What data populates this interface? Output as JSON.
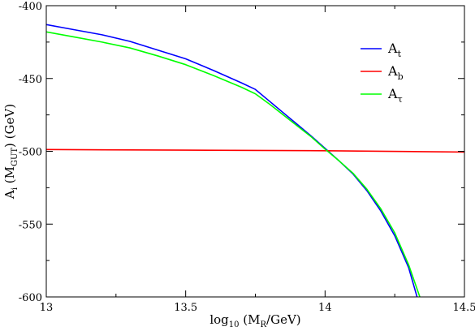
{
  "chart_data": {
    "type": "line",
    "xlabel": {
      "base": "log",
      "sub1": "10",
      "mid": " (M",
      "sub2": "R",
      "tail": "/GeV)"
    },
    "ylabel": {
      "base": "A",
      "sub1": "i",
      "mid": " (M",
      "sub2": "GUT",
      "tail": ")  (GeV)"
    },
    "xlim": [
      13,
      14.5
    ],
    "ylim": [
      -600,
      -400
    ],
    "x_ticks": [
      13,
      13.5,
      14,
      14.5
    ],
    "x_tick_labels": [
      "13",
      "13.5",
      "14",
      "14.5"
    ],
    "y_ticks": [
      -400,
      -450,
      -500,
      -550,
      -600
    ],
    "y_tick_labels": [
      "-400",
      "-450",
      "-500",
      "-550",
      "-600"
    ],
    "grid": false,
    "legend_position": "top-right",
    "series": [
      {
        "name": "A",
        "name_sub": "t",
        "color": "#0000ff",
        "points": [
          [
            13.0,
            -413.0
          ],
          [
            13.1,
            -416.5
          ],
          [
            13.2,
            -420.0
          ],
          [
            13.3,
            -424.5
          ],
          [
            13.4,
            -430.5
          ],
          [
            13.5,
            -436.5
          ],
          [
            13.6,
            -444.5
          ],
          [
            13.7,
            -453.0
          ],
          [
            13.75,
            -457.5
          ],
          [
            13.8,
            -465.5
          ],
          [
            13.85,
            -473.5
          ],
          [
            13.9,
            -481.5
          ],
          [
            13.95,
            -489.5
          ],
          [
            14.0,
            -498.0
          ],
          [
            14.05,
            -506.5
          ],
          [
            14.1,
            -515.5
          ],
          [
            14.15,
            -527.0
          ],
          [
            14.2,
            -541.0
          ],
          [
            14.25,
            -558.0
          ],
          [
            14.3,
            -580.0
          ],
          [
            14.33,
            -600.0
          ]
        ]
      },
      {
        "name": "A",
        "name_sub": "b",
        "color": "#ff0000",
        "points": [
          [
            13.0,
            -498.8
          ],
          [
            13.5,
            -499.2
          ],
          [
            14.0,
            -499.6
          ],
          [
            14.5,
            -500.5
          ]
        ]
      },
      {
        "name": "A",
        "name_sub": "τ",
        "color": "#00ff00",
        "points": [
          [
            13.0,
            -418.0
          ],
          [
            13.1,
            -421.5
          ],
          [
            13.2,
            -425.0
          ],
          [
            13.3,
            -429.0
          ],
          [
            13.4,
            -434.5
          ],
          [
            13.5,
            -440.5
          ],
          [
            13.6,
            -448.0
          ],
          [
            13.7,
            -456.0
          ],
          [
            13.75,
            -460.5
          ],
          [
            13.8,
            -467.5
          ],
          [
            13.85,
            -475.0
          ],
          [
            13.9,
            -482.5
          ],
          [
            13.95,
            -490.0
          ],
          [
            14.0,
            -498.5
          ],
          [
            14.05,
            -506.5
          ],
          [
            14.1,
            -515.0
          ],
          [
            14.15,
            -526.0
          ],
          [
            14.2,
            -539.5
          ],
          [
            14.25,
            -556.0
          ],
          [
            14.3,
            -578.0
          ],
          [
            14.34,
            -600.0
          ]
        ]
      }
    ]
  }
}
